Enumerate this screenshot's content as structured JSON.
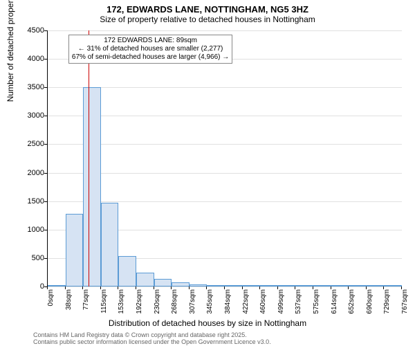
{
  "title": "172, EDWARDS LANE, NOTTINGHAM, NG5 3HZ",
  "subtitle": "Size of property relative to detached houses in Nottingham",
  "chart": {
    "type": "bar",
    "background_color": "#ffffff",
    "grid_color": "#e0e0e0",
    "axis_color": "#000000",
    "x_axis_label": "Distribution of detached houses by size in Nottingham",
    "y_axis_label": "Number of detached properties",
    "y": {
      "min": 0,
      "max": 4500,
      "ticks": [
        0,
        500,
        1000,
        1500,
        2000,
        2500,
        3000,
        3500,
        4000,
        4500
      ]
    },
    "x_tick_labels": [
      "0sqm",
      "38sqm",
      "77sqm",
      "115sqm",
      "153sqm",
      "192sqm",
      "230sqm",
      "268sqm",
      "307sqm",
      "345sqm",
      "384sqm",
      "422sqm",
      "460sqm",
      "499sqm",
      "537sqm",
      "575sqm",
      "614sqm",
      "652sqm",
      "690sqm",
      "729sqm",
      "767sqm"
    ],
    "n_x_ticks": 21,
    "bars": [
      {
        "idx": 0,
        "value": 10
      },
      {
        "idx": 1,
        "value": 1280
      },
      {
        "idx": 2,
        "value": 3500
      },
      {
        "idx": 3,
        "value": 1470
      },
      {
        "idx": 4,
        "value": 540
      },
      {
        "idx": 5,
        "value": 240
      },
      {
        "idx": 6,
        "value": 130
      },
      {
        "idx": 7,
        "value": 70
      },
      {
        "idx": 8,
        "value": 40
      },
      {
        "idx": 9,
        "value": 30
      },
      {
        "idx": 10,
        "value": 25
      },
      {
        "idx": 11,
        "value": 15
      },
      {
        "idx": 12,
        "value": 30
      },
      {
        "idx": 13,
        "value": 10
      },
      {
        "idx": 14,
        "value": 5
      },
      {
        "idx": 15,
        "value": 5
      },
      {
        "idx": 16,
        "value": 5
      },
      {
        "idx": 17,
        "value": 5
      },
      {
        "idx": 18,
        "value": 5
      },
      {
        "idx": 19,
        "value": 5
      }
    ],
    "bar_fill": "#d6e3f3",
    "bar_border": "#5b9bd5",
    "marker": {
      "sqm": 89,
      "color": "#cc0000",
      "max_sqm": 767
    },
    "annotation": {
      "line1": "172 EDWARDS LANE: 89sqm",
      "line2": "← 31% of detached houses are smaller (2,277)",
      "line3": "67% of semi-detached houses are larger (4,966) →",
      "border_color": "#888888",
      "bg_color": "#ffffff",
      "fontsize": 10
    }
  },
  "footer": {
    "line1": "Contains HM Land Registry data © Crown copyright and database right 2025.",
    "line2": "Contains public sector information licensed under the Open Government Licence v3.0."
  },
  "fonts": {
    "title_size": 13,
    "title_weight": "bold",
    "subtitle_size": 12,
    "axis_label_size": 12,
    "tick_size": 11,
    "xtick_size": 10,
    "footer_size": 9
  }
}
